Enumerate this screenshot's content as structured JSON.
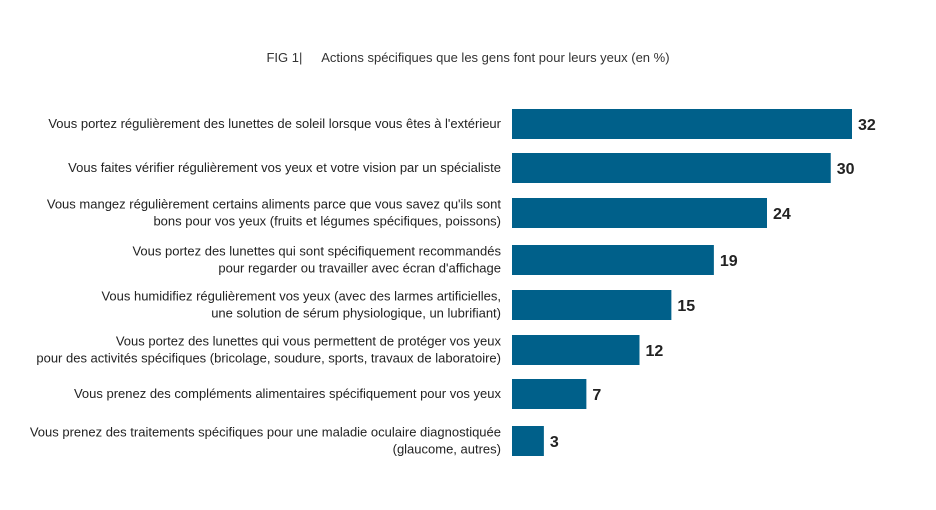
{
  "figure": {
    "number": "FIG 1|",
    "title": "Actions spécifiques que les gens font pour leurs yeux (en %)"
  },
  "colors": {
    "bar": "#00608a"
  },
  "chart_data": {
    "type": "bar",
    "orientation": "horizontal",
    "title": "Actions spécifiques que les gens font pour leurs yeux (en %)",
    "categories": [
      [
        "Vous portez régulièrement des lunettes de soleil lorsque vous êtes à l'extérieur"
      ],
      [
        "Vous faites vérifier régulièrement vos yeux et votre vision par un spécialiste"
      ],
      [
        "Vous mangez régulièrement certains aliments parce que vous savez qu'ils sont",
        "bons pour vos yeux (fruits et légumes spécifiques, poissons)"
      ],
      [
        "Vous portez des lunettes qui sont spécifiquement recommandés",
        "pour regarder ou travailler avec écran d'affichage"
      ],
      [
        "Vous humidifiez régulièrement vos yeux (avec des larmes artificielles,",
        "une solution de sérum physiologique, un lubrifiant)"
      ],
      [
        "Vous portez des lunettes qui vous permettent de protéger vos yeux",
        "pour des activités spécifiques (bricolage, soudure, sports, travaux de laboratoire)"
      ],
      [
        "Vous prenez des compléments alimentaires spécifiquement pour vos yeux"
      ],
      [
        "Vous prenez des traitements spécifiques pour une maladie oculaire diagnostiquée",
        "(glaucome, autres)"
      ]
    ],
    "values": [
      32,
      30,
      24,
      19,
      15,
      12,
      7,
      3
    ],
    "xlim": [
      0,
      32
    ],
    "grid": false,
    "legend": "none"
  }
}
